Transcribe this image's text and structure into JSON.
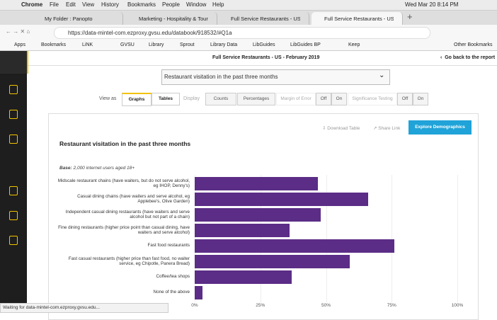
{
  "menu_bar": {
    "app": "Chrome",
    "items": [
      "File",
      "Edit",
      "View",
      "History",
      "Bookmarks",
      "People",
      "Window",
      "Help"
    ],
    "clock": "Wed Mar 20  8:14 PM"
  },
  "tabs": [
    "My Folder : Panopto",
    "Marketing - Hospitality & Touri",
    "Full Service Restaurants - US -",
    "Full Service Restaurants - US -"
  ],
  "url": "https://data-mintel-com.ezproxy.gvsu.edu/databook/918532/#Q1a",
  "bookmarks": [
    "Apps",
    "Bookmarks",
    "LiNK",
    "GVSU",
    "Library",
    "Sprout",
    "Library Data",
    "LibGuides",
    "LibGuides BP",
    "Keep",
    "Other Bookmarks"
  ],
  "header": {
    "title": "Full Service Restaurants - US - February 2019",
    "back": "Go back to the report"
  },
  "question_select": "Restaurant visitation in the past three months",
  "toolbar": {
    "view_as": "View as",
    "graphs": "Graphs",
    "tables": "Tables",
    "display": "Display",
    "counts": "Counts",
    "percentages": "Percentages",
    "margin_of_error": "Margin of Error",
    "moe_off": "Off",
    "moe_on": "On",
    "significance": "Significance Testing",
    "sig_off": "Off",
    "sig_on": "On"
  },
  "actions": {
    "download": "Download Table",
    "share": "Share Link",
    "explore": "Explore Demographics"
  },
  "status": "Waiting for data-mintel-com.ezproxy.gvsu.edu...",
  "chart_data": {
    "type": "bar",
    "orientation": "horizontal",
    "title": "Restaurant visitation in the past three months",
    "base_label": "Base:",
    "base_text": "2,000 internet users aged 18+",
    "categories": [
      "Midscale restaurant chains (have waiters, but do not serve alcohol, eg IHOP, Denny's)",
      "Casual dining chains (have waiters and serve alcohol, eg Applebee's, Olive Garden)",
      "Independent casual dining restaurants (have waiters and serve alcohol but not part of a chain)",
      "Fine dining restaurants (higher price point than casual dining, have waiters and serve alcohol)",
      "Fast food restaurants",
      "Fast casual restaurants (higher price than fast food, no waiter service, eg Chipotle, Panera Bread)",
      "Coffee/tea shops",
      "None of the above"
    ],
    "values": [
      47,
      66,
      48,
      36,
      76,
      59,
      37,
      3
    ],
    "color": "#5b2d86",
    "xlim": [
      0,
      100
    ],
    "xticks": [
      {
        "value": 0,
        "label": "0%"
      },
      {
        "value": 25,
        "label": "25%"
      },
      {
        "value": 50,
        "label": "50%"
      },
      {
        "value": 75,
        "label": "75%"
      },
      {
        "value": 100,
        "label": "100%"
      }
    ],
    "grid": true
  }
}
